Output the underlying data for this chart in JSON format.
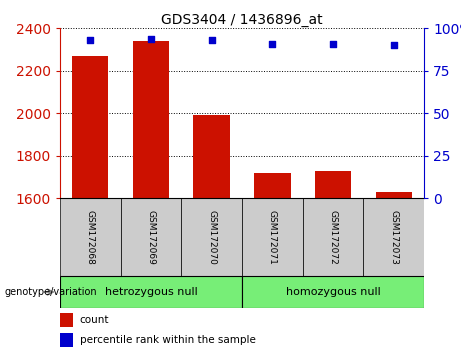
{
  "title": "GDS3404 / 1436896_at",
  "samples": [
    "GSM172068",
    "GSM172069",
    "GSM172070",
    "GSM172071",
    "GSM172072",
    "GSM172073"
  ],
  "bar_values": [
    2270,
    2340,
    1990,
    1720,
    1730,
    1630
  ],
  "percentile_values": [
    93,
    94,
    93,
    91,
    91,
    90
  ],
  "ylim_left": [
    1600,
    2400
  ],
  "ylim_right": [
    0,
    100
  ],
  "yticks_left": [
    1600,
    1800,
    2000,
    2200,
    2400
  ],
  "yticks_right": [
    0,
    25,
    50,
    75,
    100
  ],
  "bar_color": "#cc1100",
  "dot_color": "#0000cc",
  "group1_label": "hetrozygous null",
  "group2_label": "homozygous null",
  "group_bg_color": "#77ee77",
  "label_bg_color": "#cccccc",
  "tick_label_color_left": "#cc1100",
  "tick_label_color_right": "#0000cc",
  "legend_count_label": "count",
  "legend_pct_label": "percentile rank within the sample",
  "genotype_label": "genotype/variation",
  "bar_width": 0.6,
  "figsize": [
    4.61,
    3.54
  ],
  "dpi": 100
}
